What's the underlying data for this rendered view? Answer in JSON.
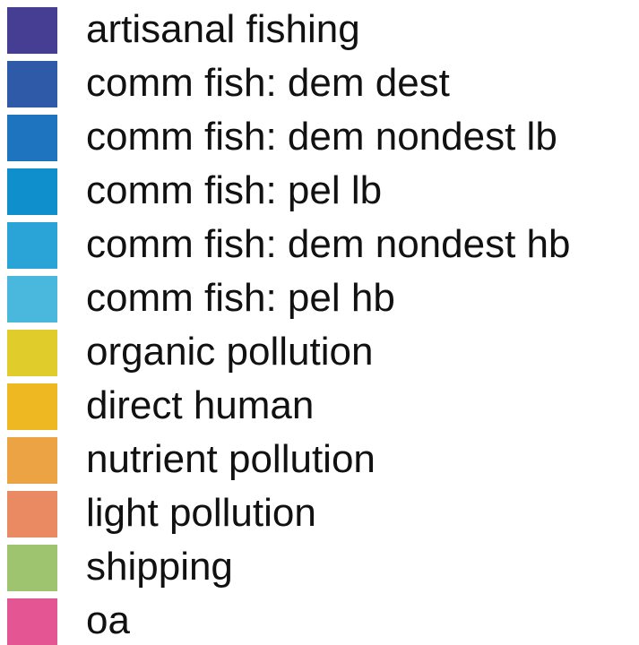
{
  "chart_data": {
    "type": "legend",
    "items": [
      {
        "label": "artisanal fishing",
        "color": "#463e93"
      },
      {
        "label": "comm fish: dem dest",
        "color": "#2f5aa8"
      },
      {
        "label": "comm fish: dem nondest lb",
        "color": "#1f74bf"
      },
      {
        "label": "comm fish: pel lb",
        "color": "#0f8fcc"
      },
      {
        "label": "comm fish: dem nondest hb",
        "color": "#2aa3d6"
      },
      {
        "label": "comm fish: pel hb",
        "color": "#4ab8dc"
      },
      {
        "label": "organic pollution",
        "color": "#e0cc2a"
      },
      {
        "label": "direct human",
        "color": "#eeb823"
      },
      {
        "label": "nutrient pollution",
        "color": "#eca343"
      },
      {
        "label": "light pollution",
        "color": "#ea8a62"
      },
      {
        "label": "shipping",
        "color": "#9ec470"
      },
      {
        "label": "oa",
        "color": "#e35693"
      }
    ]
  }
}
